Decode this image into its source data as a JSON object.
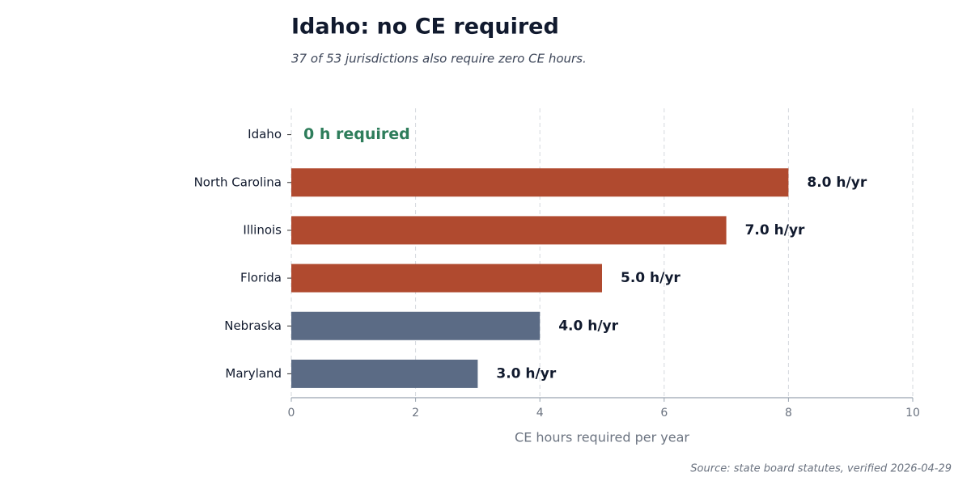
{
  "chart_data": {
    "type": "barh",
    "title": "Idaho: no CE required",
    "subtitle": "37 of 53 jurisdictions also require zero CE hours.",
    "source": "Source: state board statutes, verified 2026-04-29",
    "xlabel": "CE hours required per year",
    "categories": [
      "Idaho",
      "North Carolina",
      "Illinois",
      "Florida",
      "Nebraska",
      "Maryland"
    ],
    "values": [
      0,
      8,
      7,
      5,
      4,
      3
    ],
    "value_labels": [
      "0 h required",
      "8.0 h/yr",
      "7.0 h/yr",
      "5.0 h/yr",
      "4.0 h/yr",
      "3.0 h/yr"
    ],
    "colors": [
      "#2e7d5b",
      "#b04a2f",
      "#b04a2f",
      "#b04a2f",
      "#5b6b85",
      "#5b6b85"
    ],
    "xlim": [
      0,
      10
    ],
    "xticks": [
      0,
      2,
      4,
      6,
      8,
      10
    ],
    "grid": true
  }
}
